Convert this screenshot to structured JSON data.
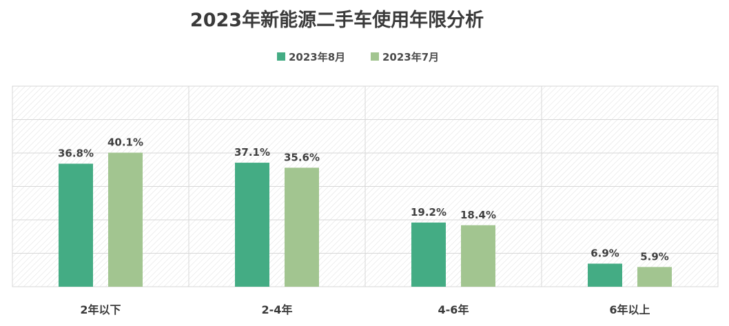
{
  "chart_data": {
    "type": "bar",
    "title": "2023年新能源二手车使用年限分析",
    "categories": [
      "2年以下",
      "2-4年",
      "4-6年",
      "6年以上"
    ],
    "series": [
      {
        "name": "2023年8月",
        "values": [
          36.8,
          37.1,
          19.2,
          6.9
        ],
        "labels": [
          "36.8%",
          "37.1%",
          "19.2%",
          "6.9%"
        ],
        "color": "#44AC84"
      },
      {
        "name": "2023年7月",
        "values": [
          40.1,
          35.6,
          18.4,
          5.9
        ],
        "labels": [
          "40.1%",
          "35.6%",
          "18.4%",
          "5.9%"
        ],
        "color": "#A2C590"
      }
    ],
    "ylim": [
      0,
      60
    ],
    "y_axis_visible": false,
    "grid": true,
    "legend_position": "top-center",
    "plot_background": "diagonal-hatch",
    "xlabel": "",
    "ylabel": ""
  }
}
